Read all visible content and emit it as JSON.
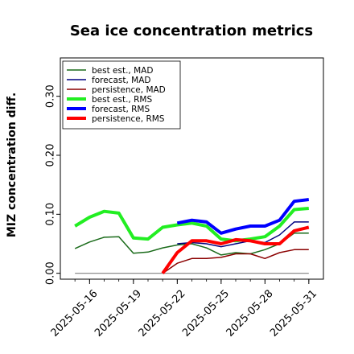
{
  "chart_data": {
    "type": "line",
    "title": "Sea ice concentration metrics",
    "xlabel": "",
    "ylabel": "MIZ concentration diff.",
    "ylim": [
      -0.01,
      0.365
    ],
    "yticks": [
      0.0,
      0.1,
      0.2,
      0.3
    ],
    "ytick_labels": [
      "0.00",
      "0.10",
      "0.20",
      "0.30"
    ],
    "x": [
      "2025-05-15",
      "2025-05-16",
      "2025-05-17",
      "2025-05-18",
      "2025-05-19",
      "2025-05-20",
      "2025-05-21",
      "2025-05-22",
      "2025-05-23",
      "2025-05-24",
      "2025-05-25",
      "2025-05-26",
      "2025-05-27",
      "2025-05-28",
      "2025-05-29",
      "2025-05-30",
      "2025-05-31"
    ],
    "xlim": [
      "2025-05-14",
      "2025-06-01"
    ],
    "xticks": [
      "2025-05-16",
      "2025-05-19",
      "2025-05-22",
      "2025-05-25",
      "2025-05-28",
      "2025-05-31"
    ],
    "xtick_labels": [
      "2025-05-16",
      "2025-05-19",
      "2025-05-22",
      "2025-05-25",
      "2025-05-28",
      "2025-05-31"
    ],
    "highlight_tick": "2025-05-22",
    "highlight_color": "#228b22",
    "zero_line": 0.0,
    "legend_position": "upper-left",
    "series": [
      {
        "name": "best est., MAD",
        "color": "#1a6b1a",
        "width": 1.5,
        "values": [
          0.042,
          0.053,
          0.061,
          0.062,
          0.034,
          0.036,
          0.043,
          0.048,
          0.05,
          0.043,
          0.031,
          0.035,
          0.033,
          0.04,
          0.05,
          0.068,
          0.068
        ]
      },
      {
        "name": "forecast,  MAD",
        "color": "#000080",
        "width": 1.5,
        "values": [
          null,
          null,
          null,
          null,
          null,
          null,
          null,
          0.05,
          0.052,
          0.05,
          0.045,
          0.05,
          0.055,
          0.052,
          0.065,
          0.087,
          0.087
        ]
      },
      {
        "name": "persistence, MAD",
        "color": "#8b0000",
        "width": 1.5,
        "values": [
          null,
          null,
          null,
          null,
          null,
          null,
          0.0,
          0.017,
          0.025,
          0.025,
          0.027,
          0.033,
          0.033,
          0.025,
          0.035,
          0.04,
          0.04
        ]
      },
      {
        "name": "best est., RMS",
        "color": "#22ee22",
        "width": 4,
        "values": [
          0.08,
          0.095,
          0.105,
          0.102,
          0.06,
          0.058,
          0.078,
          0.082,
          0.085,
          0.08,
          0.058,
          0.055,
          0.058,
          0.062,
          0.08,
          0.108,
          0.11
        ]
      },
      {
        "name": "forecast,  RMS",
        "color": "#0000ff",
        "width": 4,
        "values": [
          null,
          null,
          null,
          null,
          null,
          null,
          null,
          0.085,
          0.09,
          0.087,
          0.068,
          0.075,
          0.08,
          0.08,
          0.09,
          0.122,
          0.125
        ]
      },
      {
        "name": "persistence, RMS",
        "color": "#ff0000",
        "width": 4,
        "values": [
          null,
          null,
          null,
          null,
          null,
          null,
          0.0,
          0.035,
          0.055,
          0.055,
          0.05,
          0.057,
          0.055,
          0.05,
          0.05,
          0.072,
          0.078
        ]
      }
    ]
  }
}
